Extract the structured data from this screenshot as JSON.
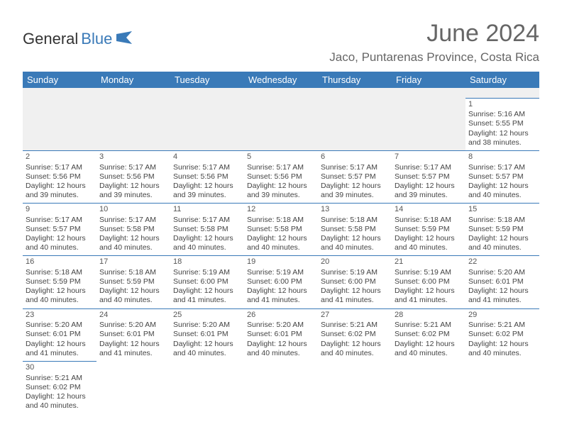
{
  "logo": {
    "text1": "General",
    "text2": "Blue"
  },
  "title": "June 2024",
  "location": "Jaco, Puntarenas Province, Costa Rica",
  "colors": {
    "header_bg": "#3a7ab8",
    "header_text": "#ffffff",
    "border": "#3a7ab8",
    "blank_row": "#f0f0f0",
    "title_color": "#666666",
    "body_text": "#444444"
  },
  "weekdays": [
    "Sunday",
    "Monday",
    "Tuesday",
    "Wednesday",
    "Thursday",
    "Friday",
    "Saturday"
  ],
  "weeks": [
    [
      null,
      null,
      null,
      null,
      null,
      null,
      {
        "d": "1",
        "sr": "5:16 AM",
        "ss": "5:55 PM",
        "dl": "12 hours and 38 minutes."
      }
    ],
    [
      {
        "d": "2",
        "sr": "5:17 AM",
        "ss": "5:56 PM",
        "dl": "12 hours and 39 minutes."
      },
      {
        "d": "3",
        "sr": "5:17 AM",
        "ss": "5:56 PM",
        "dl": "12 hours and 39 minutes."
      },
      {
        "d": "4",
        "sr": "5:17 AM",
        "ss": "5:56 PM",
        "dl": "12 hours and 39 minutes."
      },
      {
        "d": "5",
        "sr": "5:17 AM",
        "ss": "5:56 PM",
        "dl": "12 hours and 39 minutes."
      },
      {
        "d": "6",
        "sr": "5:17 AM",
        "ss": "5:57 PM",
        "dl": "12 hours and 39 minutes."
      },
      {
        "d": "7",
        "sr": "5:17 AM",
        "ss": "5:57 PM",
        "dl": "12 hours and 39 minutes."
      },
      {
        "d": "8",
        "sr": "5:17 AM",
        "ss": "5:57 PM",
        "dl": "12 hours and 40 minutes."
      }
    ],
    [
      {
        "d": "9",
        "sr": "5:17 AM",
        "ss": "5:57 PM",
        "dl": "12 hours and 40 minutes."
      },
      {
        "d": "10",
        "sr": "5:17 AM",
        "ss": "5:58 PM",
        "dl": "12 hours and 40 minutes."
      },
      {
        "d": "11",
        "sr": "5:17 AM",
        "ss": "5:58 PM",
        "dl": "12 hours and 40 minutes."
      },
      {
        "d": "12",
        "sr": "5:18 AM",
        "ss": "5:58 PM",
        "dl": "12 hours and 40 minutes."
      },
      {
        "d": "13",
        "sr": "5:18 AM",
        "ss": "5:58 PM",
        "dl": "12 hours and 40 minutes."
      },
      {
        "d": "14",
        "sr": "5:18 AM",
        "ss": "5:59 PM",
        "dl": "12 hours and 40 minutes."
      },
      {
        "d": "15",
        "sr": "5:18 AM",
        "ss": "5:59 PM",
        "dl": "12 hours and 40 minutes."
      }
    ],
    [
      {
        "d": "16",
        "sr": "5:18 AM",
        "ss": "5:59 PM",
        "dl": "12 hours and 40 minutes."
      },
      {
        "d": "17",
        "sr": "5:18 AM",
        "ss": "5:59 PM",
        "dl": "12 hours and 40 minutes."
      },
      {
        "d": "18",
        "sr": "5:19 AM",
        "ss": "6:00 PM",
        "dl": "12 hours and 41 minutes."
      },
      {
        "d": "19",
        "sr": "5:19 AM",
        "ss": "6:00 PM",
        "dl": "12 hours and 41 minutes."
      },
      {
        "d": "20",
        "sr": "5:19 AM",
        "ss": "6:00 PM",
        "dl": "12 hours and 41 minutes."
      },
      {
        "d": "21",
        "sr": "5:19 AM",
        "ss": "6:00 PM",
        "dl": "12 hours and 41 minutes."
      },
      {
        "d": "22",
        "sr": "5:20 AM",
        "ss": "6:01 PM",
        "dl": "12 hours and 41 minutes."
      }
    ],
    [
      {
        "d": "23",
        "sr": "5:20 AM",
        "ss": "6:01 PM",
        "dl": "12 hours and 41 minutes."
      },
      {
        "d": "24",
        "sr": "5:20 AM",
        "ss": "6:01 PM",
        "dl": "12 hours and 41 minutes."
      },
      {
        "d": "25",
        "sr": "5:20 AM",
        "ss": "6:01 PM",
        "dl": "12 hours and 40 minutes."
      },
      {
        "d": "26",
        "sr": "5:20 AM",
        "ss": "6:01 PM",
        "dl": "12 hours and 40 minutes."
      },
      {
        "d": "27",
        "sr": "5:21 AM",
        "ss": "6:02 PM",
        "dl": "12 hours and 40 minutes."
      },
      {
        "d": "28",
        "sr": "5:21 AM",
        "ss": "6:02 PM",
        "dl": "12 hours and 40 minutes."
      },
      {
        "d": "29",
        "sr": "5:21 AM",
        "ss": "6:02 PM",
        "dl": "12 hours and 40 minutes."
      }
    ],
    [
      {
        "d": "30",
        "sr": "5:21 AM",
        "ss": "6:02 PM",
        "dl": "12 hours and 40 minutes."
      },
      null,
      null,
      null,
      null,
      null,
      null
    ]
  ],
  "labels": {
    "sunrise": "Sunrise:",
    "sunset": "Sunset:",
    "daylight": "Daylight:"
  }
}
